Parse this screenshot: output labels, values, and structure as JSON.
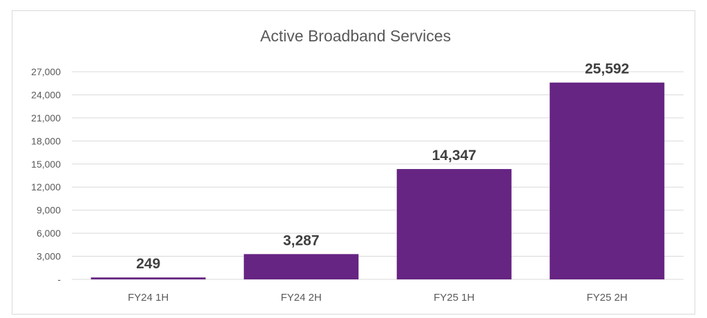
{
  "chart_data": {
    "type": "bar",
    "title": "Active Broadband Services",
    "xlabel": "",
    "ylabel": "",
    "categories": [
      "FY24 1H",
      "FY24 2H",
      "FY25 1H",
      "FY25 2H"
    ],
    "values": [
      249,
      3287,
      14347,
      25592
    ],
    "data_labels": [
      "249",
      "3,287",
      "14,347",
      "25,592"
    ],
    "y_ticks": [
      0,
      3000,
      6000,
      9000,
      12000,
      15000,
      18000,
      21000,
      24000,
      27000
    ],
    "y_tick_labels": [
      "-",
      "3,000",
      "6,000",
      "9,000",
      "12,000",
      "15,000",
      "18,000",
      "21,000",
      "24,000",
      "27,000"
    ],
    "ylim": [
      0,
      27000
    ],
    "grid": true,
    "legend": "none",
    "bar_color": "#662483",
    "grid_color": "#d9d9d9"
  }
}
